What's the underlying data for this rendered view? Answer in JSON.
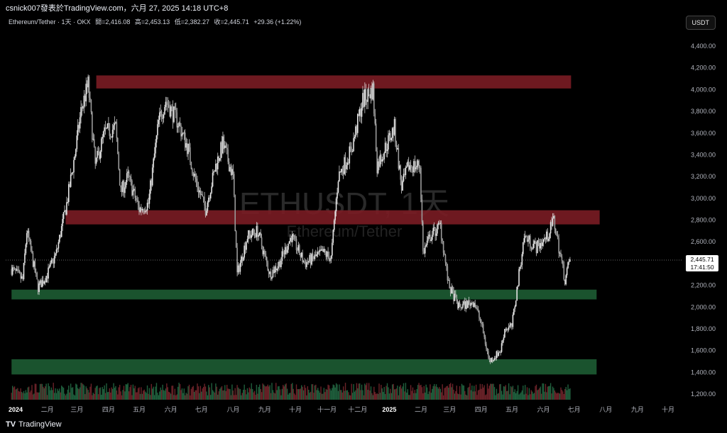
{
  "header": {
    "publisher_line": "csnick007發表於TradingView.com，六月 27, 2025 14:18 UTC+8"
  },
  "legend": {
    "symbol": "Ethereum/Tether · 1天 · OKX",
    "open": "開=2,416.08",
    "high": "高=2,453.13",
    "low": "低=2,382.27",
    "close": "收=2,445.71",
    "change": "+29.36 (+1.22%)"
  },
  "currency_button": "USDT",
  "watermark": {
    "symbol": "ETHUSDT, 1天",
    "name": "Ethereum/Tether"
  },
  "last_price": {
    "value": "2,445.71",
    "countdown": "17:41:50"
  },
  "footer": {
    "brand": "TradingView"
  },
  "colors": {
    "background": "#000000",
    "resistance_zone": "#7a1c24",
    "support_zone": "#1d5c33",
    "candle": "#e6e6e6",
    "volume_up": "#1f5e3c",
    "volume_down": "#6a2228"
  },
  "chart_data": {
    "type": "candlestick",
    "symbol": "ETHUSDT",
    "interval": "1D",
    "ylim": [
      1200,
      4400
    ],
    "y_ticks": [
      "4,400.00",
      "4,200.00",
      "4,000.00",
      "3,800.00",
      "3,600.00",
      "3,400.00",
      "3,200.00",
      "3,000.00",
      "2,800.00",
      "2,600.00",
      "2,400.00",
      "2,200.00",
      "2,000.00",
      "1,800.00",
      "1,600.00",
      "1,400.00",
      "1,200.00"
    ],
    "y_tick_values": [
      4400,
      4200,
      4000,
      3800,
      3600,
      3400,
      3200,
      3000,
      2800,
      2600,
      2400,
      2200,
      2000,
      1800,
      1600,
      1400,
      1200
    ],
    "x_tick_labels": [
      "2024",
      "二月",
      "三月",
      "四月",
      "五月",
      "六月",
      "七月",
      "八月",
      "九月",
      "十月",
      "十一月",
      "十二月",
      "2025",
      "二月",
      "三月",
      "四月",
      "五月",
      "六月",
      "七月",
      "八月",
      "九月",
      "十月"
    ],
    "x_tick_dates": [
      "2024-01-01",
      "2024-02-01",
      "2024-03-01",
      "2024-04-01",
      "2024-05-01",
      "2024-06-01",
      "2024-07-01",
      "2024-08-01",
      "2024-09-01",
      "2024-10-01",
      "2024-11-01",
      "2024-12-01",
      "2025-01-01",
      "2025-02-01",
      "2025-03-01",
      "2025-04-01",
      "2025-05-01",
      "2025-06-01",
      "2025-07-01",
      "2025-08-01",
      "2025-09-01",
      "2025-10-01"
    ],
    "price_path": [
      [
        "2023-12-28",
        2350
      ],
      [
        "2024-01-08",
        2250
      ],
      [
        "2024-01-12",
        2700
      ],
      [
        "2024-01-23",
        2180
      ],
      [
        "2024-02-01",
        2300
      ],
      [
        "2024-02-10",
        2500
      ],
      [
        "2024-02-20",
        2950
      ],
      [
        "2024-02-28",
        3400
      ],
      [
        "2024-03-05",
        3800
      ],
      [
        "2024-03-12",
        4050
      ],
      [
        "2024-03-19",
        3300
      ],
      [
        "2024-03-28",
        3600
      ],
      [
        "2024-04-08",
        3650
      ],
      [
        "2024-04-13",
        3050
      ],
      [
        "2024-04-20",
        3200
      ],
      [
        "2024-05-01",
        2900
      ],
      [
        "2024-05-10",
        2950
      ],
      [
        "2024-05-20",
        3700
      ],
      [
        "2024-05-27",
        3900
      ],
      [
        "2024-06-08",
        3700
      ],
      [
        "2024-06-18",
        3450
      ],
      [
        "2024-06-24",
        3200
      ],
      [
        "2024-07-05",
        2900
      ],
      [
        "2024-07-15",
        3300
      ],
      [
        "2024-07-22",
        3500
      ],
      [
        "2024-08-01",
        3200
      ],
      [
        "2024-08-05",
        2300
      ],
      [
        "2024-08-15",
        2650
      ],
      [
        "2024-08-25",
        2700
      ],
      [
        "2024-09-06",
        2300
      ],
      [
        "2024-09-15",
        2400
      ],
      [
        "2024-09-27",
        2650
      ],
      [
        "2024-10-10",
        2400
      ],
      [
        "2024-10-28",
        2500
      ],
      [
        "2024-11-05",
        2450
      ],
      [
        "2024-11-12",
        3200
      ],
      [
        "2024-11-25",
        3450
      ],
      [
        "2024-12-06",
        3900
      ],
      [
        "2024-12-16",
        4000
      ],
      [
        "2024-12-20",
        3300
      ],
      [
        "2025-01-06",
        3650
      ],
      [
        "2025-01-13",
        3100
      ],
      [
        "2025-01-20",
        3300
      ],
      [
        "2025-01-31",
        3300
      ],
      [
        "2025-02-03",
        2500
      ],
      [
        "2025-02-10",
        2650
      ],
      [
        "2025-02-20",
        2750
      ],
      [
        "2025-02-28",
        2200
      ],
      [
        "2025-03-10",
        2000
      ],
      [
        "2025-03-25",
        2050
      ],
      [
        "2025-04-01",
        1850
      ],
      [
        "2025-04-09",
        1500
      ],
      [
        "2025-04-20",
        1600
      ],
      [
        "2025-04-24",
        1800
      ],
      [
        "2025-05-01",
        1820
      ],
      [
        "2025-05-08",
        2300
      ],
      [
        "2025-05-13",
        2650
      ],
      [
        "2025-05-25",
        2550
      ],
      [
        "2025-06-05",
        2650
      ],
      [
        "2025-06-11",
        2800
      ],
      [
        "2025-06-22",
        2250
      ],
      [
        "2025-06-27",
        2445.71
      ]
    ],
    "annotation_zones": [
      {
        "kind": "resistance",
        "from_date": "2024-03-20",
        "to_date": "2025-06-28",
        "y_from": 4010,
        "y_to": 4130
      },
      {
        "kind": "resistance",
        "from_date": "2024-02-19",
        "to_date": "2025-07-26",
        "y_from": 2760,
        "y_to": 2890
      },
      {
        "kind": "support",
        "from_date": "2023-12-28",
        "to_date": "2025-07-23",
        "y_from": 2070,
        "y_to": 2160
      },
      {
        "kind": "support",
        "from_date": "2023-12-28",
        "to_date": "2025-07-23",
        "y_from": 1380,
        "y_to": 1520
      }
    ],
    "last_price": 2445.71,
    "volume": "relative bars, not labeled",
    "grid": false
  }
}
